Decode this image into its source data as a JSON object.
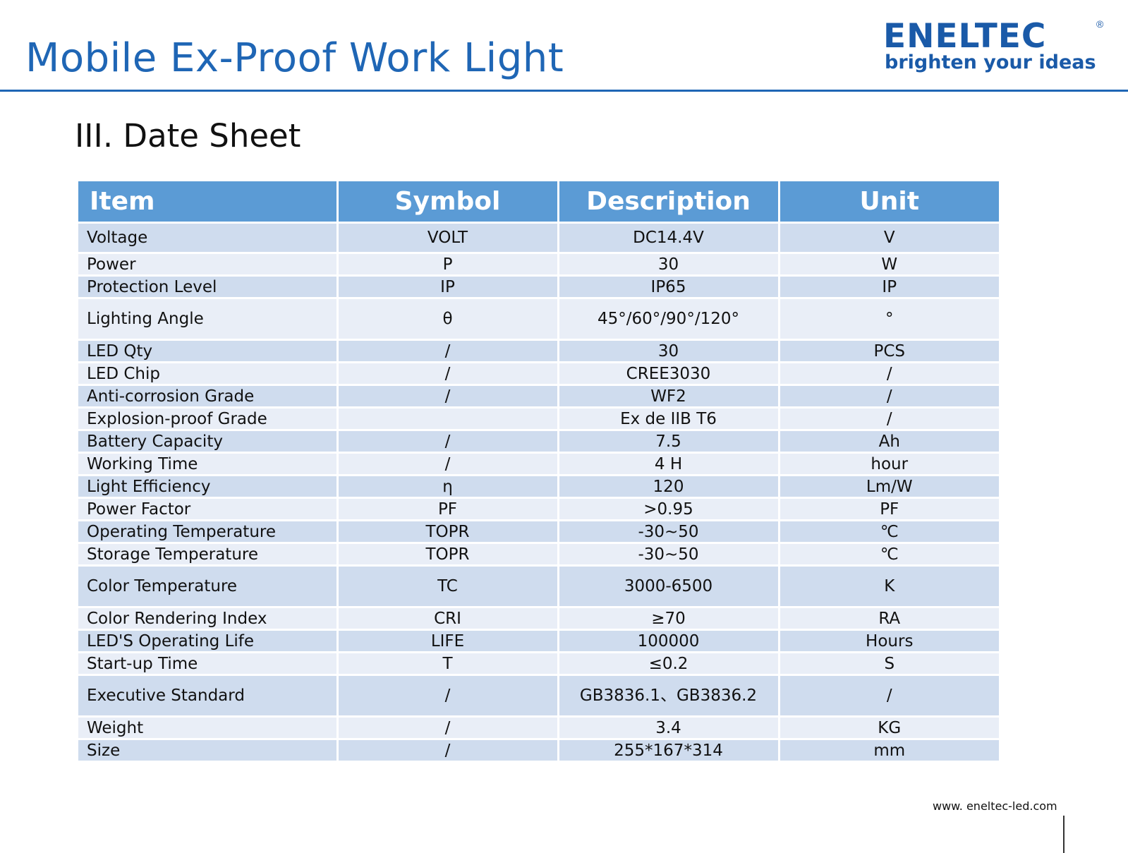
{
  "header": {
    "title": "Mobile Ex-Proof Work Light",
    "logo": {
      "word": "ENELTEC",
      "registered": "®",
      "tagline": "brighten your ideas"
    },
    "accent_color": "#1f66b5"
  },
  "section_title": "III. Date Sheet",
  "table": {
    "columns": [
      "Item",
      "Symbol",
      "Description",
      "Unit"
    ],
    "header_color": "#5b9bd5",
    "row_colors": [
      "#cfdcee",
      "#e9eef7"
    ],
    "rows": [
      [
        "Voltage",
        "VOLT",
        "DC14.4V",
        "V"
      ],
      [
        "Power",
        "P",
        "30",
        "W"
      ],
      [
        "Protection Level",
        "IP",
        "IP65",
        "IP"
      ],
      [
        "Lighting Angle",
        "θ",
        "45°/60°/90°/120°",
        "°"
      ],
      [
        "LED Qty",
        "/",
        "30",
        "PCS"
      ],
      [
        "LED Chip",
        "/",
        "CREE3030",
        "/"
      ],
      [
        "Anti-corrosion Grade",
        "/",
        "WF2",
        "/"
      ],
      [
        "Explosion-proof Grade",
        "",
        "Ex de IIB T6",
        "/"
      ],
      [
        "Battery Capacity",
        "/",
        "7.5",
        "Ah"
      ],
      [
        "Working Time",
        "/",
        "4 H",
        "hour"
      ],
      [
        "Light Efficiency",
        "η",
        "120",
        "Lm/W"
      ],
      [
        "Power Factor",
        "PF",
        ">0.95",
        "PF"
      ],
      [
        "Operating Temperature",
        "TOPR",
        "-30~50",
        "℃"
      ],
      [
        "Storage Temperature",
        "TOPR",
        "-30~50",
        "℃"
      ],
      [
        "Color Temperature",
        "TC",
        "3000-6500",
        "K"
      ],
      [
        "Color Rendering Index",
        "CRI",
        "≥70",
        "RA"
      ],
      [
        "LED'S Operating Life",
        "LIFE",
        "100000",
        "Hours"
      ],
      [
        "Start-up Time",
        "T",
        "≤0.2",
        "S"
      ],
      [
        "Executive Standard",
        "/",
        "GB3836.1、GB3836.2",
        "/"
      ],
      [
        "Weight",
        "/",
        "3.4",
        "KG"
      ],
      [
        "Size",
        "/",
        "255*167*314",
        "mm"
      ]
    ]
  },
  "footer": {
    "url": "www. eneltec-led.com"
  }
}
